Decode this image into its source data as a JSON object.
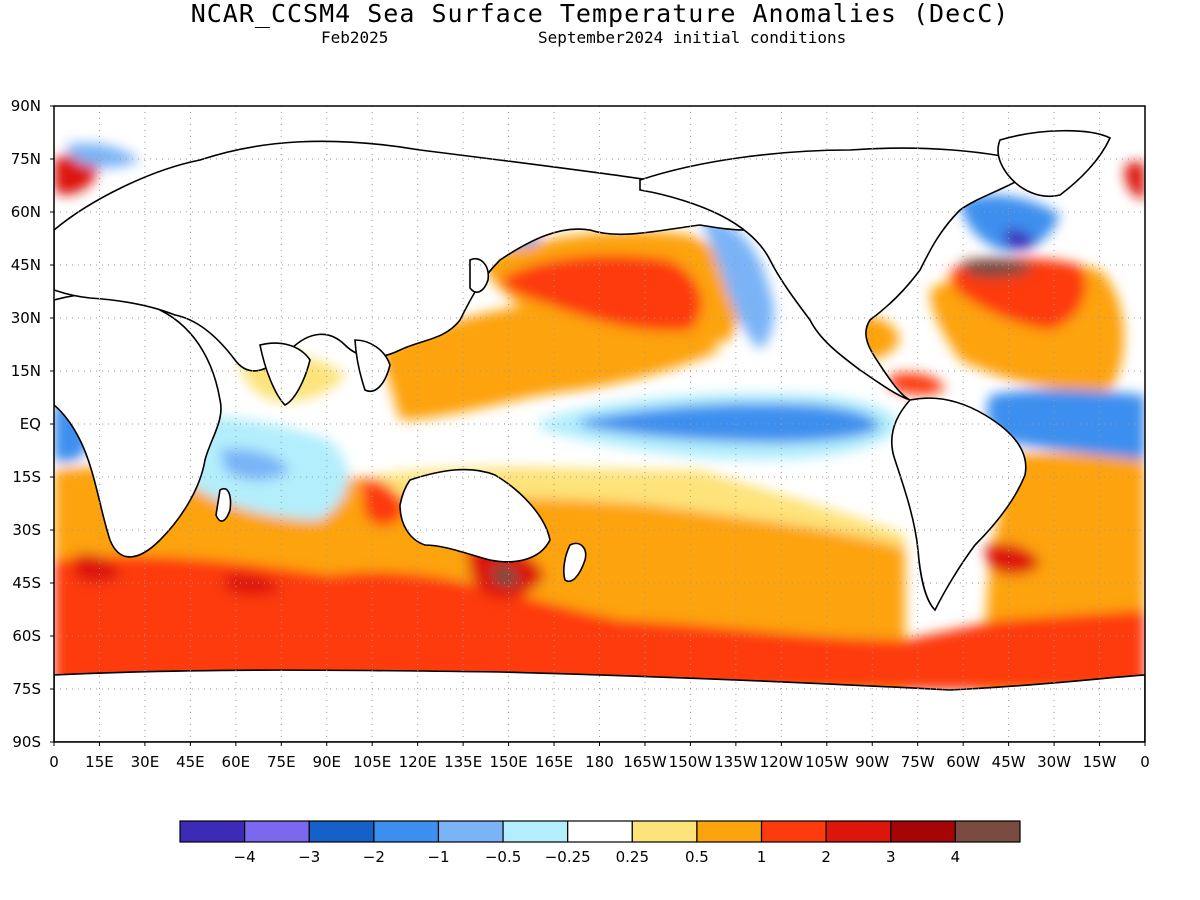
{
  "header": {
    "title": "NCAR_CCSM4 Sea Surface Temperature Anomalies (DecC)",
    "valid": "Feb2025",
    "init": "September2024 initial conditions"
  },
  "axes": {
    "lat_labels": [
      "90N",
      "75N",
      "60N",
      "45N",
      "30N",
      "15N",
      "EQ",
      "15S",
      "30S",
      "45S",
      "60S",
      "75S",
      "90S"
    ],
    "lon_labels": [
      "0",
      "15E",
      "30E",
      "45E",
      "60E",
      "75E",
      "90E",
      "105E",
      "120E",
      "135E",
      "150E",
      "165E",
      "180",
      "165W",
      "150W",
      "135W",
      "120W",
      "105W",
      "90W",
      "75W",
      "60W",
      "45W",
      "30W",
      "15W",
      "0"
    ]
  },
  "colorbar": {
    "colors": [
      "#3d2bb8",
      "#7b68ee",
      "#1560c9",
      "#3c8fef",
      "#7ab4f7",
      "#b3eefc",
      "#ffffff",
      "#fde37a",
      "#fda30e",
      "#fd3b0e",
      "#dd160c",
      "#a60505",
      "#7a4b3f"
    ],
    "labels": [
      "-4",
      "-3",
      "-2",
      "-1",
      "-0.5",
      "-0.25",
      "0.25",
      "0.5",
      "1",
      "2",
      "3",
      "4"
    ]
  },
  "chart_data": {
    "type": "heatmap",
    "title": "NCAR_CCSM4 Sea Surface Temperature Anomalies (DecC)",
    "subtitle": "Feb2025   September2024 initial conditions",
    "x_range_deg_east": [
      0,
      360
    ],
    "y_range_deg_north": [
      -90,
      90
    ],
    "grid": true,
    "legend_placement": "bottom",
    "levels": [
      -4,
      -3,
      -2,
      -1,
      -0.5,
      -0.25,
      0.25,
      0.5,
      1,
      2,
      3,
      4
    ],
    "regions": [
      {
        "name": "North Pacific warm anomaly",
        "lon": [
          135,
          240
        ],
        "lat": [
          25,
          55
        ],
        "value": 1.5
      },
      {
        "name": "Equatorial Pacific cool tongue",
        "lon": [
          190,
          270
        ],
        "lat": [
          -5,
          7
        ],
        "value": -1.2
      },
      {
        "name": "Southern Ocean warm band",
        "lon": [
          0,
          360
        ],
        "lat": [
          -65,
          -30
        ],
        "value": 1.2
      },
      {
        "name": "Gulf Stream hot spot",
        "lon": [
          290,
          320
        ],
        "lat": [
          37,
          45
        ],
        "value": 3.5
      },
      {
        "name": "Tasman hot spot",
        "lon": [
          145,
          160
        ],
        "lat": [
          -45,
          -38
        ],
        "value": 3.5
      },
      {
        "name": "Labrador Sea cool anomaly",
        "lon": [
          300,
          320
        ],
        "lat": [
          50,
          62
        ],
        "value": -2.5
      },
      {
        "name": "Equatorial Atlantic cool anomaly",
        "lon": [
          330,
          360
        ],
        "lat": [
          -5,
          8
        ],
        "value": -1.5
      },
      {
        "name": "Western Pacific warm pool",
        "lon": [
          120,
          180
        ],
        "lat": [
          0,
          25
        ],
        "value": 0.8
      },
      {
        "name": "South Indian cool anomaly",
        "lon": [
          45,
          110
        ],
        "lat": [
          -35,
          -10
        ],
        "value": -0.7
      }
    ]
  }
}
